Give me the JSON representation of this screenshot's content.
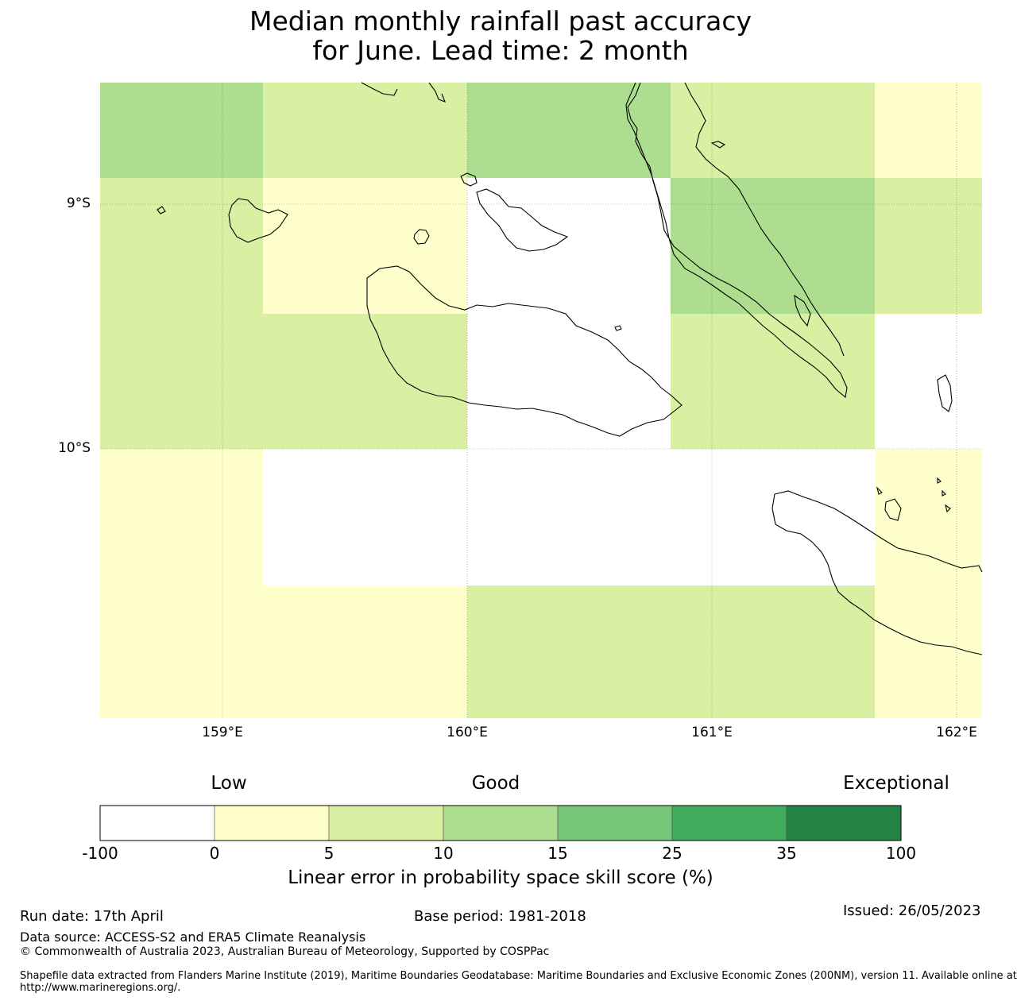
{
  "title": {
    "line1": "Median monthly rainfall past accuracy",
    "line2": "for June. Lead time: 2 month"
  },
  "map": {
    "lat_labels": [
      "9°S",
      "10°S"
    ],
    "lon_labels": [
      "159°E",
      "160°E",
      "161°E",
      "162°E"
    ],
    "category_colors": [
      "#ffffff",
      "#ffffcc",
      "#d9f0a3",
      "#addd8e",
      "#78c679",
      "#41ab5d",
      "#238443"
    ],
    "grid_categories": [
      [
        3,
        2,
        2,
        1,
        1
      ],
      [
        2,
        1,
        2,
        0,
        1
      ],
      [
        3,
        0,
        0,
        0,
        2
      ],
      [
        2,
        3,
        2,
        0,
        2
      ],
      [
        1,
        2,
        0,
        1,
        1
      ]
    ]
  },
  "colorbar": {
    "words": [
      "Low",
      "Good",
      "Exceptional"
    ],
    "ticks": [
      "-100",
      "0",
      "5",
      "10",
      "15",
      "25",
      "35",
      "100"
    ],
    "colors": [
      "#ffffff",
      "#ffffcc",
      "#d9f0a3",
      "#addd8e",
      "#78c679",
      "#41ab5d",
      "#238443"
    ],
    "title": "Linear error in probability space skill score (%)"
  },
  "footer": {
    "run_date": "Run date: 17th April",
    "base_period": "Base period: 1981-2018",
    "issued": "Issued: 26/05/2023",
    "data_source": "Data source: ACCESS-S2 and ERA5 Climate Reanalysis",
    "copyright": "© Commonwealth of Australia 2023, Australian Bureau of Meteorology, Supported by COSPPac",
    "shapefile_line1": "Shapefile data extracted from Flanders Marine Institute (2019), Maritime Boundaries Geodatabase: Maritime Boundaries and Exclusive Economic Zones (200NM), version 11. Available online at",
    "shapefile_line2": "http://www.marineregions.org/."
  }
}
